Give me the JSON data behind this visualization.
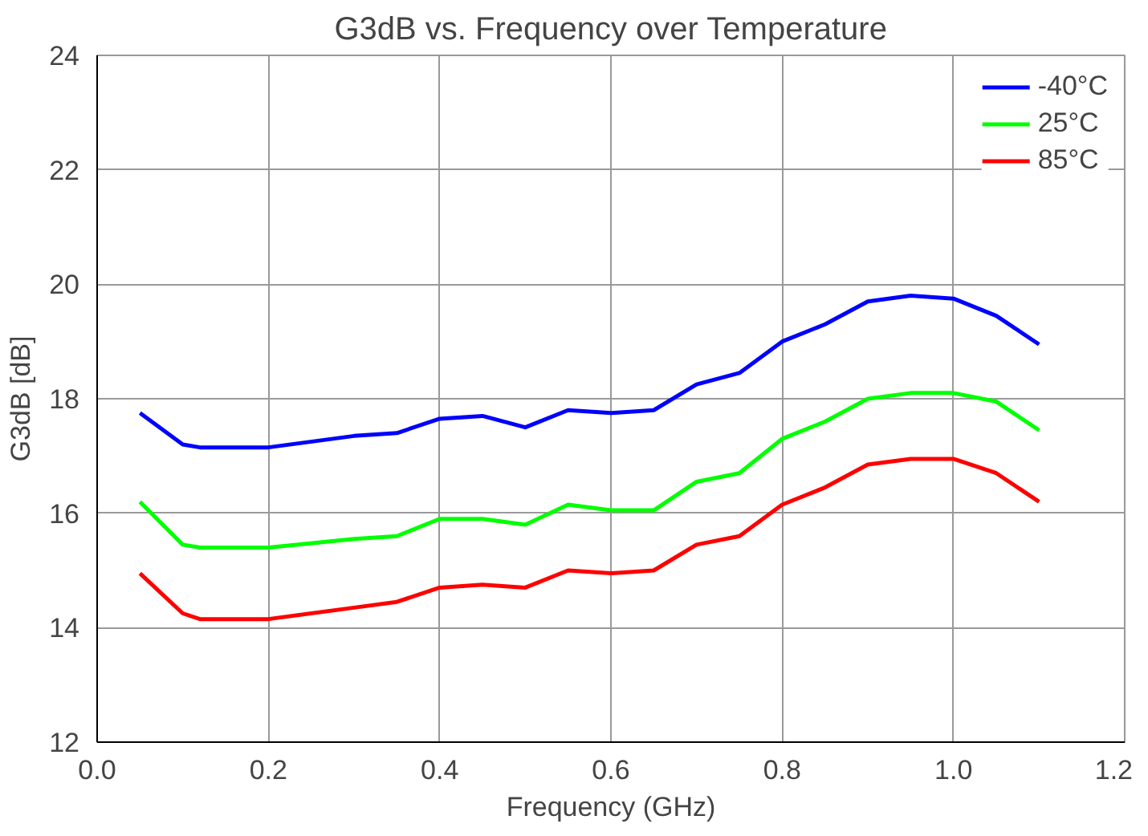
{
  "chart_data": {
    "type": "line",
    "title": "G3dB vs. Frequency over Temperature",
    "xlabel": "Frequency (GHz)",
    "ylabel": "G3dB [dB]",
    "x": [
      0.05,
      0.1,
      0.12,
      0.2,
      0.3,
      0.35,
      0.4,
      0.45,
      0.5,
      0.55,
      0.6,
      0.65,
      0.7,
      0.75,
      0.8,
      0.85,
      0.9,
      0.95,
      1.0,
      1.05,
      1.1
    ],
    "series": [
      {
        "name": "-40°C",
        "color": "#0000ff",
        "values": [
          17.75,
          17.2,
          17.15,
          17.15,
          17.35,
          17.4,
          17.65,
          17.7,
          17.5,
          17.8,
          17.75,
          17.8,
          18.25,
          18.45,
          19.0,
          19.3,
          19.7,
          19.8,
          19.75,
          19.45,
          18.95
        ]
      },
      {
        "name": "25°C",
        "color": "#00ff00",
        "values": [
          16.2,
          15.45,
          15.4,
          15.4,
          15.55,
          15.6,
          15.9,
          15.9,
          15.8,
          16.15,
          16.05,
          16.05,
          16.55,
          16.7,
          17.3,
          17.6,
          18.0,
          18.1,
          18.1,
          17.95,
          17.45
        ]
      },
      {
        "name": "85°C",
        "color": "#ff0000",
        "values": [
          14.95,
          14.25,
          14.15,
          14.15,
          14.35,
          14.45,
          14.7,
          14.75,
          14.7,
          15.0,
          14.95,
          15.0,
          15.45,
          15.6,
          16.15,
          16.45,
          16.85,
          16.95,
          16.95,
          16.7,
          16.2
        ]
      }
    ],
    "xlim": [
      0,
      1.2
    ],
    "xticks": [
      {
        "value": 0,
        "label": "0.0"
      },
      0.2,
      0.4,
      0.6,
      0.8,
      {
        "value": 1,
        "label": "1.0"
      },
      1.2
    ],
    "ylim": [
      12,
      24
    ],
    "yticks": [
      12,
      14,
      16,
      18,
      20,
      22,
      24
    ],
    "grid": true,
    "legend": "top right",
    "marker": "none",
    "line_style": "solid"
  }
}
